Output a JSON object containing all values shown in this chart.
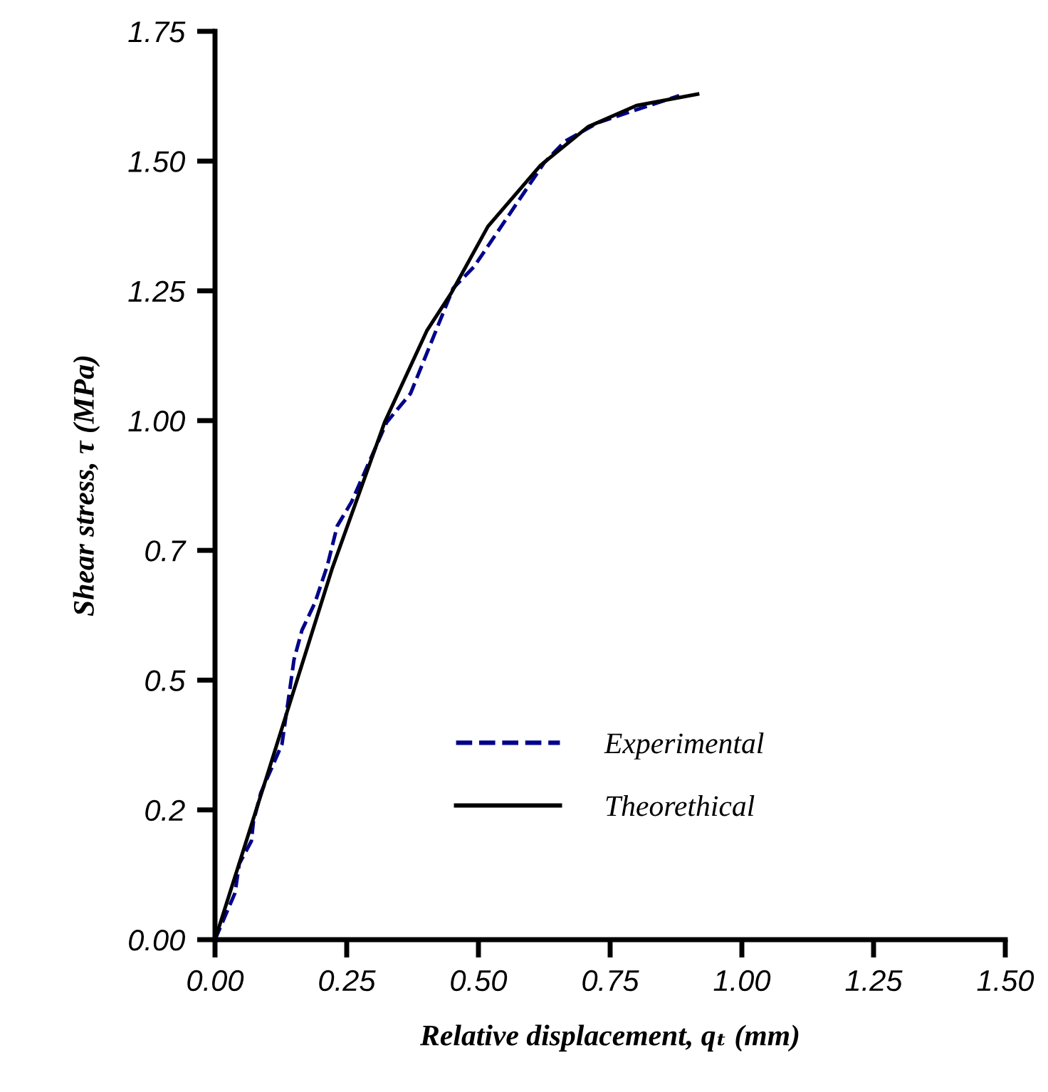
{
  "chart_data": {
    "type": "line",
    "xlabel": "Relative displacement, qₜ (mm)",
    "ylabel": "Shear stress, τ (MPa)",
    "xlim": [
      0,
      1.5
    ],
    "xticks": [
      {
        "value": 0,
        "label": "0.00"
      },
      {
        "value": 0.25,
        "label": "0.25"
      },
      {
        "value": 0.5,
        "label": "0.50"
      },
      {
        "value": 0.75,
        "label": "0.75"
      },
      {
        "value": 1.0,
        "label": "1.00"
      },
      {
        "value": 1.25,
        "label": "1.25"
      },
      {
        "value": 1.5,
        "label": "1.50"
      }
    ],
    "ylim": [
      0,
      1.75
    ],
    "yticks": [
      {
        "value": 0,
        "label": "0.00"
      },
      {
        "value": 0.25,
        "label": "0.2"
      },
      {
        "value": 0.5,
        "label": "0.5"
      },
      {
        "value": 0.75,
        "label": "0.7"
      },
      {
        "value": 1.0,
        "label": "1.00"
      },
      {
        "value": 1.25,
        "label": "1.25"
      },
      {
        "value": 1.5,
        "label": "1.50"
      },
      {
        "value": 1.75,
        "label": "1.75"
      }
    ],
    "legend": "bottom",
    "grid": false,
    "series": [
      {
        "name": "Experimental",
        "color": "#00008b",
        "line_style": "dashed",
        "x": [
          0,
          0.038,
          0.046,
          0.069,
          0.073,
          0.087,
          0.127,
          0.141,
          0.15,
          0.165,
          0.19,
          0.213,
          0.232,
          0.259,
          0.326,
          0.371,
          0.452,
          0.492,
          0.625,
          0.664,
          0.727,
          0.8,
          0.881
        ],
        "values": [
          0,
          0.09,
          0.146,
          0.19,
          0.228,
          0.283,
          0.376,
          0.475,
          0.54,
          0.596,
          0.65,
          0.72,
          0.797,
          0.843,
          0.997,
          1.052,
          1.255,
          1.297,
          1.497,
          1.538,
          1.574,
          1.599,
          1.626
        ]
      },
      {
        "name": "Theorethical",
        "color": "#000000",
        "line_style": "solid",
        "x": [
          0,
          0.1,
          0.222,
          0.322,
          0.402,
          0.448,
          0.518,
          0.618,
          0.708,
          0.8,
          0.916
        ],
        "values": [
          0,
          0.32,
          0.714,
          0.997,
          1.173,
          1.245,
          1.374,
          1.492,
          1.566,
          1.607,
          1.629
        ]
      }
    ]
  }
}
